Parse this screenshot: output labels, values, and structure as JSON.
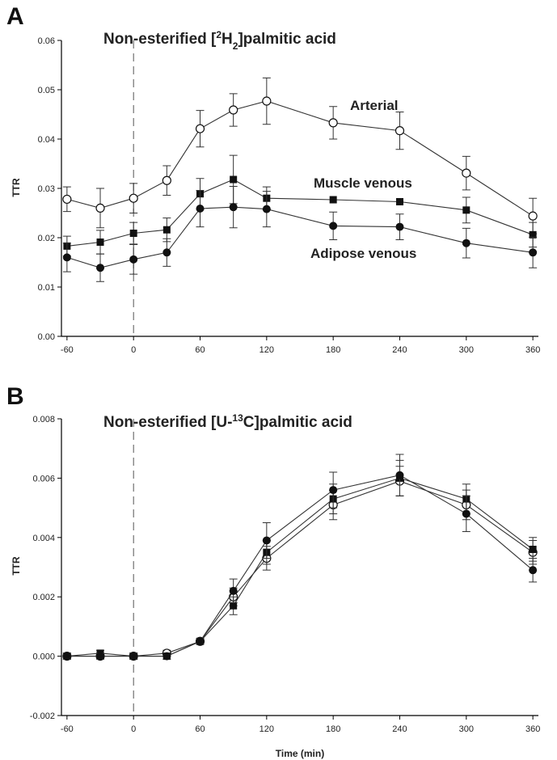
{
  "chart_data": [
    {
      "panel": "A",
      "type": "line",
      "title_parts": [
        "Non-esterified [",
        "2",
        "H",
        "2",
        "]palmitic acid"
      ],
      "ylabel": "TTR",
      "xlabel": "",
      "x": [
        -60,
        -30,
        0,
        30,
        60,
        90,
        120,
        180,
        240,
        300,
        360
      ],
      "xticks": [
        -60,
        0,
        60,
        120,
        180,
        240,
        300,
        360
      ],
      "xlim": [
        -65,
        365
      ],
      "ylim": [
        0,
        0.06
      ],
      "yticks": [
        0.0,
        0.01,
        0.02,
        0.03,
        0.04,
        0.05,
        0.06
      ],
      "ytick_labels": [
        "0.00",
        "0.01",
        "0.02",
        "0.03",
        "0.04",
        "0.05",
        "0.06"
      ],
      "vline": 0,
      "grid": false,
      "series": [
        {
          "name": "Arterial",
          "marker": "open-circle",
          "values": [
            0.0278,
            0.026,
            0.028,
            0.0316,
            0.0421,
            0.0459,
            0.0477,
            0.0433,
            0.0417,
            0.0331,
            0.0244
          ],
          "errors": [
            0.0025,
            0.004,
            0.003,
            0.003,
            0.0037,
            0.0033,
            0.0047,
            0.0033,
            0.0038,
            0.0034,
            0.0036
          ]
        },
        {
          "name": "Muscle venous",
          "marker": "filled-square",
          "values": [
            0.0183,
            0.0191,
            0.0209,
            0.0216,
            0.0289,
            0.0318,
            0.028,
            0.0277,
            0.0273,
            0.0256,
            0.0206
          ],
          "errors": [
            0.002,
            0.0024,
            0.0022,
            0.0024,
            0.0031,
            0.0049,
            0.0023,
            0.0,
            0.0,
            0.0026,
            0.0025
          ]
        },
        {
          "name": "Adipose venous",
          "marker": "filled-circle",
          "values": [
            0.016,
            0.0139,
            0.0156,
            0.017,
            0.0259,
            0.0262,
            0.0258,
            0.0224,
            0.0222,
            0.0189,
            0.017
          ],
          "errors": [
            0.0029,
            0.0028,
            0.003,
            0.0028,
            0.0037,
            0.0042,
            0.0036,
            0.0028,
            0.0026,
            0.003,
            0.0031
          ]
        }
      ],
      "annotations": [
        "Arterial",
        "Muscle venous",
        "Adipose venous"
      ]
    },
    {
      "panel": "B",
      "type": "line",
      "title_parts": [
        "Non-esterified [U-",
        "13",
        "C]palmitic acid"
      ],
      "ylabel": "TTR",
      "xlabel": "Time (min)",
      "x": [
        -60,
        -30,
        0,
        30,
        60,
        90,
        120,
        180,
        240,
        300,
        360
      ],
      "xticks": [
        -60,
        0,
        60,
        120,
        180,
        240,
        300,
        360
      ],
      "xlim": [
        -65,
        365
      ],
      "ylim": [
        -0.002,
        0.008
      ],
      "yticks": [
        -0.002,
        0.0,
        0.002,
        0.004,
        0.006,
        0.008
      ],
      "ytick_labels": [
        "-0.002",
        "0.000",
        "0.002",
        "0.004",
        "0.006",
        "0.008"
      ],
      "vline": 0,
      "grid": false,
      "series": [
        {
          "marker": "open-circle",
          "values": [
            0.0,
            0.0,
            0.0,
            0.0001,
            0.0005,
            0.002,
            0.0033,
            0.0051,
            0.0059,
            0.0051,
            0.0035
          ],
          "errors": [
            0.0001,
            0.0001,
            0.0001,
            0.0001,
            0.0001,
            0.0003,
            0.0004,
            0.0005,
            0.0005,
            0.0005,
            0.0004
          ]
        },
        {
          "marker": "filled-square",
          "values": [
            0.0,
            0.0001,
            0.0,
            0.0,
            0.0005,
            0.0017,
            0.0035,
            0.0053,
            0.006,
            0.0053,
            0.0036
          ],
          "errors": [
            0.0001,
            0.0001,
            0.0001,
            0.0001,
            0.0001,
            0.0003,
            0.0004,
            0.0005,
            0.0006,
            0.0005,
            0.0004
          ]
        },
        {
          "marker": "filled-circle",
          "values": [
            0.0,
            0.0,
            0.0,
            0.0,
            0.0005,
            0.0022,
            0.0039,
            0.0056,
            0.0061,
            0.0048,
            0.0029
          ],
          "errors": [
            0.0001,
            0.0001,
            0.0001,
            0.0001,
            0.0001,
            0.0004,
            0.0006,
            0.0006,
            0.0007,
            0.0006,
            0.0004
          ]
        }
      ]
    }
  ]
}
